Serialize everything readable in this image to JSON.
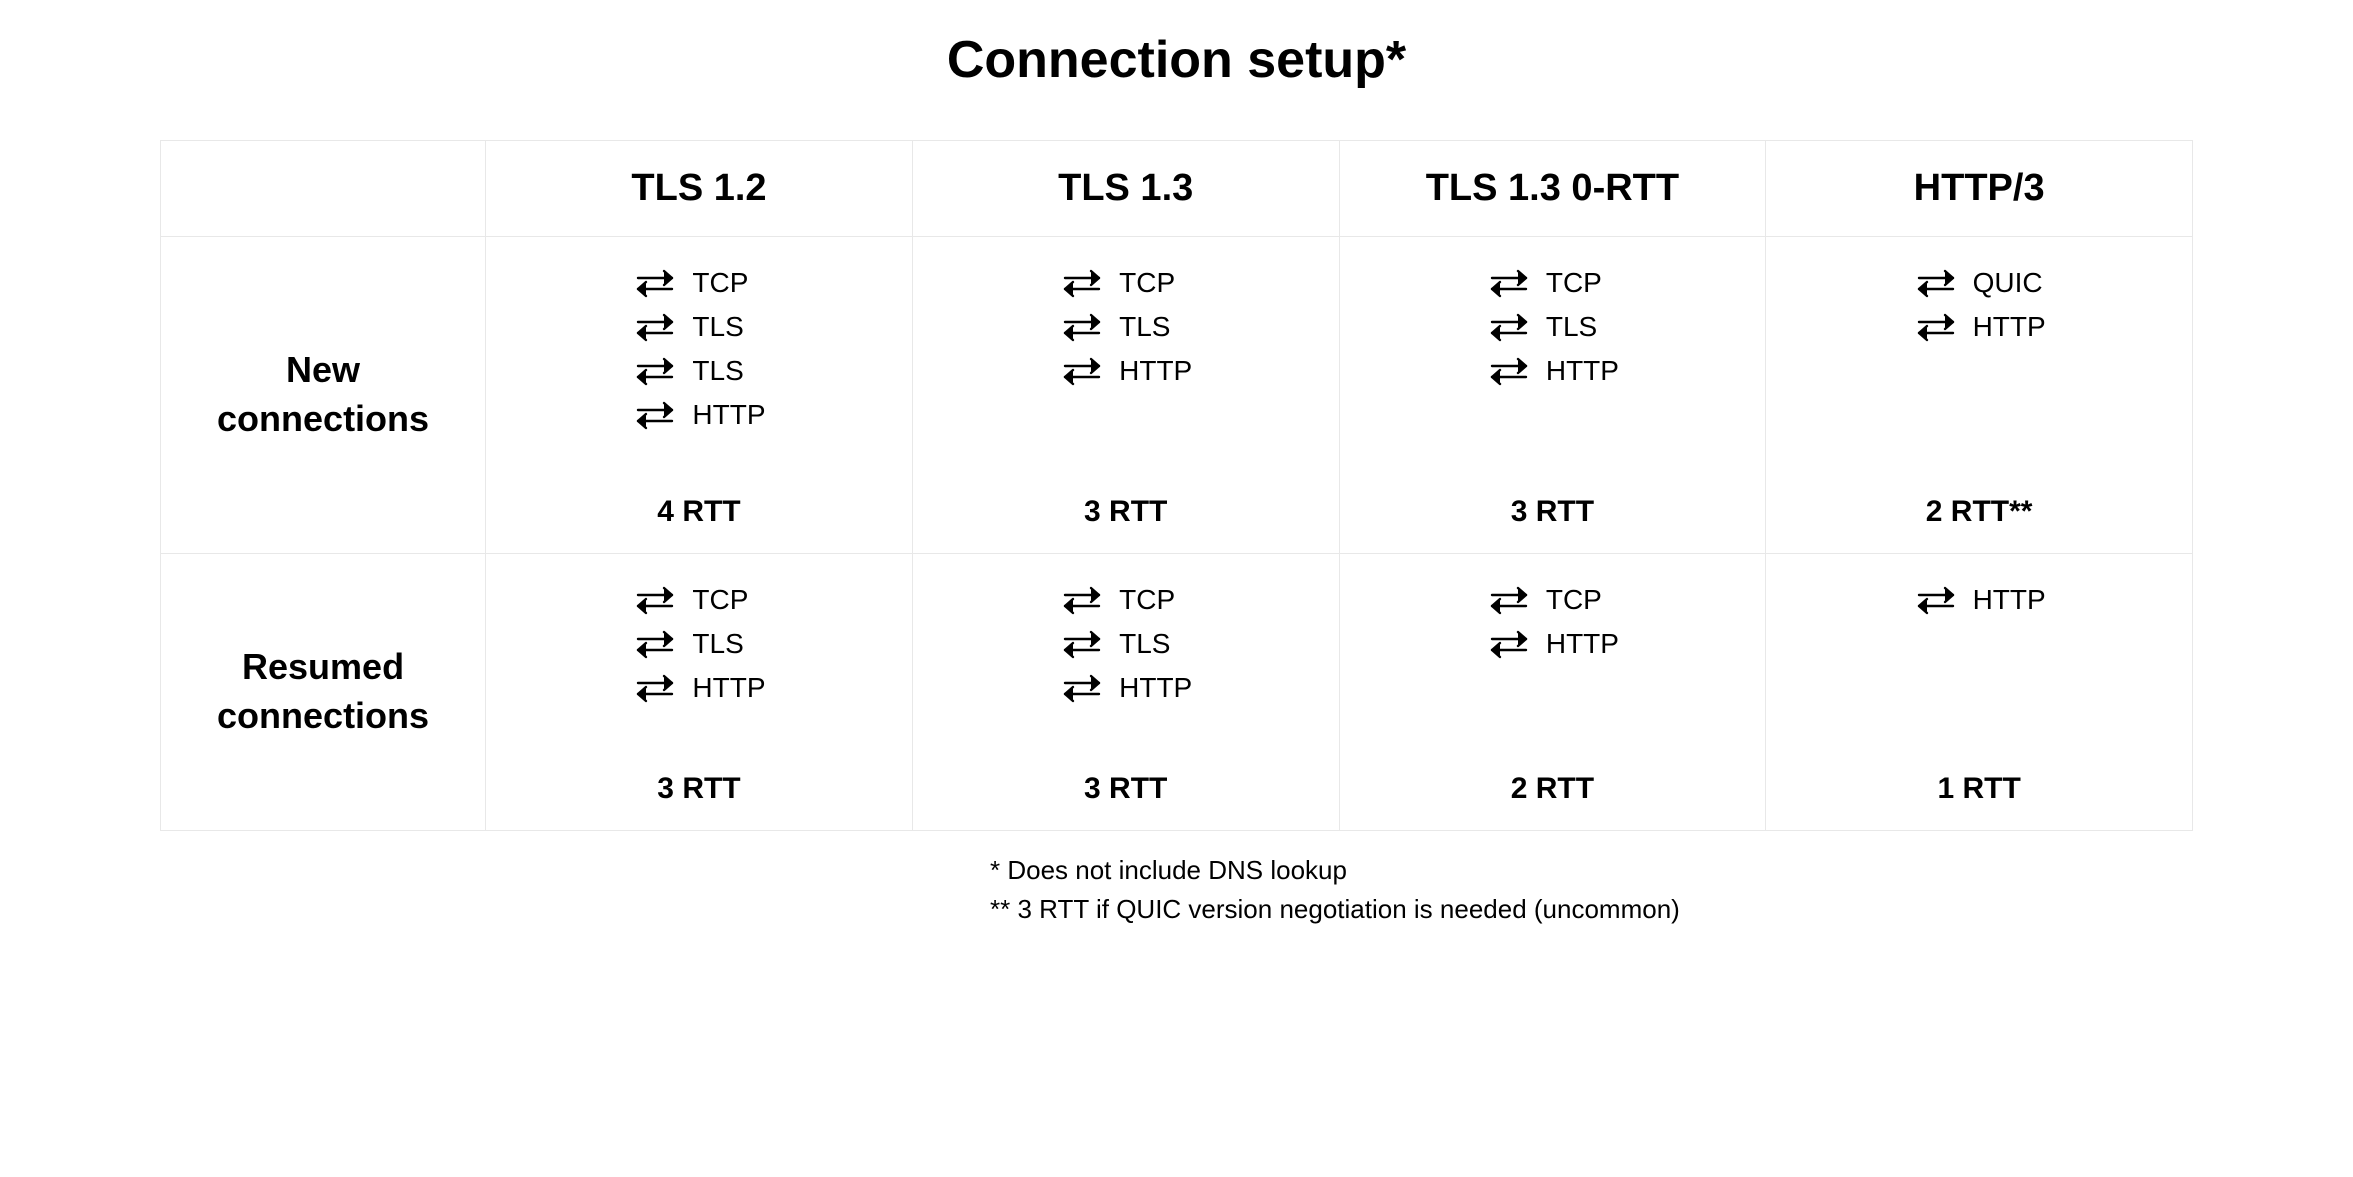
{
  "title": "Connection setup*",
  "columns": [
    "TLS 1.2",
    "TLS 1.3",
    "TLS 1.3 0-RTT",
    "HTTP/3"
  ],
  "rows": [
    {
      "label": "New\nconnections",
      "cells": [
        {
          "steps": [
            "TCP",
            "TLS",
            "TLS",
            "HTTP"
          ],
          "rtt": "4 RTT"
        },
        {
          "steps": [
            "TCP",
            "TLS",
            "HTTP"
          ],
          "rtt": "3 RTT"
        },
        {
          "steps": [
            "TCP",
            "TLS",
            "HTTP"
          ],
          "rtt": "3 RTT"
        },
        {
          "steps": [
            "QUIC",
            "HTTP"
          ],
          "rtt": "2 RTT**"
        }
      ]
    },
    {
      "label": "Resumed\nconnections",
      "cells": [
        {
          "steps": [
            "TCP",
            "TLS",
            "HTTP"
          ],
          "rtt": "3 RTT"
        },
        {
          "steps": [
            "TCP",
            "TLS",
            "HTTP"
          ],
          "rtt": "3 RTT"
        },
        {
          "steps": [
            "TCP",
            "HTTP"
          ],
          "rtt": "2 RTT"
        },
        {
          "steps": [
            "HTTP"
          ],
          "rtt": "1 RTT"
        }
      ]
    }
  ],
  "footnotes": [
    "* Does not include DNS lookup",
    "** 3 RTT if QUIC version negotiation is needed (uncommon)"
  ],
  "style": {
    "background_color": "#ffffff",
    "text_color": "#000000",
    "border_color": "#e8e8e8",
    "arrow_stroke": "#000000",
    "arrow_stroke_width": 2.4,
    "title_fontsize": 52,
    "col_header_fontsize": 38,
    "row_header_fontsize": 36,
    "step_fontsize": 28,
    "rtt_fontsize": 30,
    "footnote_fontsize": 26,
    "font_family": "Arial, Helvetica, sans-serif"
  }
}
